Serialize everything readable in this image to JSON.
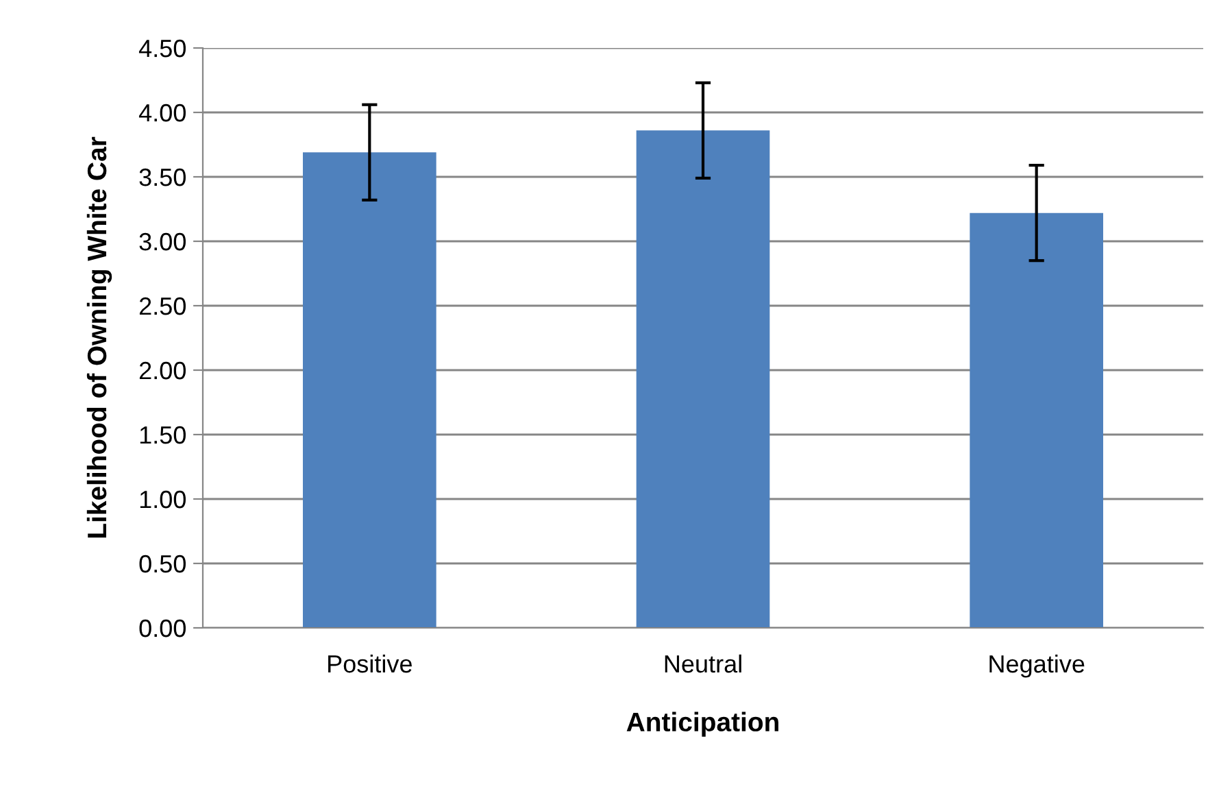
{
  "chart_data": {
    "type": "bar",
    "xlabel": "Anticipation",
    "ylabel": "Likelihood of Owning White Car",
    "categories": [
      "Positive",
      "Neutral",
      "Negative"
    ],
    "values": [
      3.69,
      3.86,
      3.22
    ],
    "errors": [
      0.37,
      0.37,
      0.37
    ],
    "color": "#4f81bd",
    "ylim": [
      0,
      4.5
    ],
    "yticks": [
      {
        "value": 0,
        "label": "0.00"
      },
      {
        "value": 0.5,
        "label": "0.50"
      },
      {
        "value": 1,
        "label": "1.00"
      },
      {
        "value": 1.5,
        "label": "1.50"
      },
      {
        "value": 2,
        "label": "2.00"
      },
      {
        "value": 2.5,
        "label": "2.50"
      },
      {
        "value": 3,
        "label": "3.00"
      },
      {
        "value": 3.5,
        "label": "3.50"
      },
      {
        "value": 4,
        "label": "4.00"
      },
      {
        "value": 4.5,
        "label": "4.50"
      }
    ],
    "grid": "y",
    "legend": false
  }
}
